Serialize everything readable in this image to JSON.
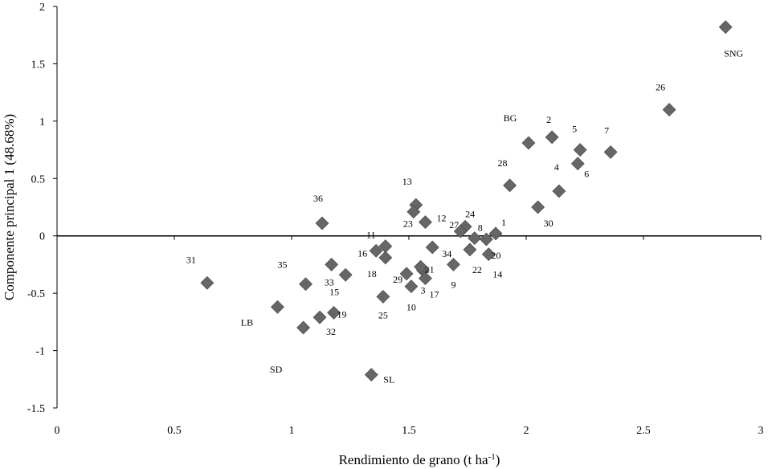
{
  "chart_data": {
    "type": "scatter",
    "title": "",
    "xlabel": "Rendimiento de grano (t ha",
    "xlabel_sup": "-1",
    "xlabel_end": ")",
    "ylabel": "Componente principal 1 (48.68%)",
    "xlim": [
      0,
      3
    ],
    "ylim": [
      -1.5,
      2
    ],
    "xticks": [
      "0",
      "0.5",
      "1",
      "1.5",
      "2",
      "2.5",
      "3"
    ],
    "yticks": [
      "-1.5",
      "-1",
      "-0.5",
      "0",
      "0.5",
      "1",
      "1.5",
      "2"
    ],
    "marker_color": "#666666",
    "grid": false,
    "points": [
      {
        "label": "1",
        "x": 1.87,
        "y": 0.02
      },
      {
        "label": "2",
        "x": 2.11,
        "y": 0.86
      },
      {
        "label": "3",
        "x": 1.56,
        "y": -0.3
      },
      {
        "label": "4",
        "x": 2.14,
        "y": 0.39
      },
      {
        "label": "5",
        "x": 2.23,
        "y": 0.75
      },
      {
        "label": "6",
        "x": 2.22,
        "y": 0.63
      },
      {
        "label": "7",
        "x": 2.36,
        "y": 0.73
      },
      {
        "label": "8",
        "x": 1.78,
        "y": -0.02
      },
      {
        "label": "9",
        "x": 1.69,
        "y": -0.25
      },
      {
        "label": "10",
        "x": 1.51,
        "y": -0.44
      },
      {
        "label": "11",
        "x": 1.4,
        "y": -0.09
      },
      {
        "label": "12",
        "x": 1.57,
        "y": 0.12
      },
      {
        "label": "13",
        "x": 1.53,
        "y": 0.27
      },
      {
        "label": "14",
        "x": 1.84,
        "y": -0.16
      },
      {
        "label": "15",
        "x": 1.23,
        "y": -0.34
      },
      {
        "label": "16",
        "x": 1.36,
        "y": -0.13
      },
      {
        "label": "17",
        "x": 1.57,
        "y": -0.37
      },
      {
        "label": "18",
        "x": 1.4,
        "y": -0.19
      },
      {
        "label": "19",
        "x": 1.18,
        "y": -0.67
      },
      {
        "label": "20",
        "x": 1.83,
        "y": -0.03
      },
      {
        "label": "21",
        "x": 1.55,
        "y": -0.27
      },
      {
        "label": "22",
        "x": 1.76,
        "y": -0.12
      },
      {
        "label": "23",
        "x": 1.52,
        "y": 0.21
      },
      {
        "label": "24",
        "x": 1.74,
        "y": 0.08
      },
      {
        "label": "25",
        "x": 1.39,
        "y": -0.53
      },
      {
        "label": "26",
        "x": 2.61,
        "y": 1.1
      },
      {
        "label": "27",
        "x": 1.72,
        "y": 0.04
      },
      {
        "label": "28",
        "x": 1.93,
        "y": 0.44
      },
      {
        "label": "29",
        "x": 1.49,
        "y": -0.33
      },
      {
        "label": "30",
        "x": 2.05,
        "y": 0.25
      },
      {
        "label": "31",
        "x": 0.64,
        "y": -0.41
      },
      {
        "label": "32",
        "x": 1.12,
        "y": -0.71
      },
      {
        "label": "33",
        "x": 1.17,
        "y": -0.25
      },
      {
        "label": "34",
        "x": 1.6,
        "y": -0.1
      },
      {
        "label": "35",
        "x": 1.06,
        "y": -0.42
      },
      {
        "label": "36",
        "x": 1.13,
        "y": 0.11
      },
      {
        "label": "BG",
        "x": 2.01,
        "y": 0.81
      },
      {
        "label": "SNG",
        "x": 2.85,
        "y": 1.82
      },
      {
        "label": "LB",
        "x": 0.94,
        "y": -0.62
      },
      {
        "label": "SD",
        "x": 1.05,
        "y": -0.8
      },
      {
        "label": "SL",
        "x": 1.34,
        "y": -1.21
      }
    ]
  }
}
